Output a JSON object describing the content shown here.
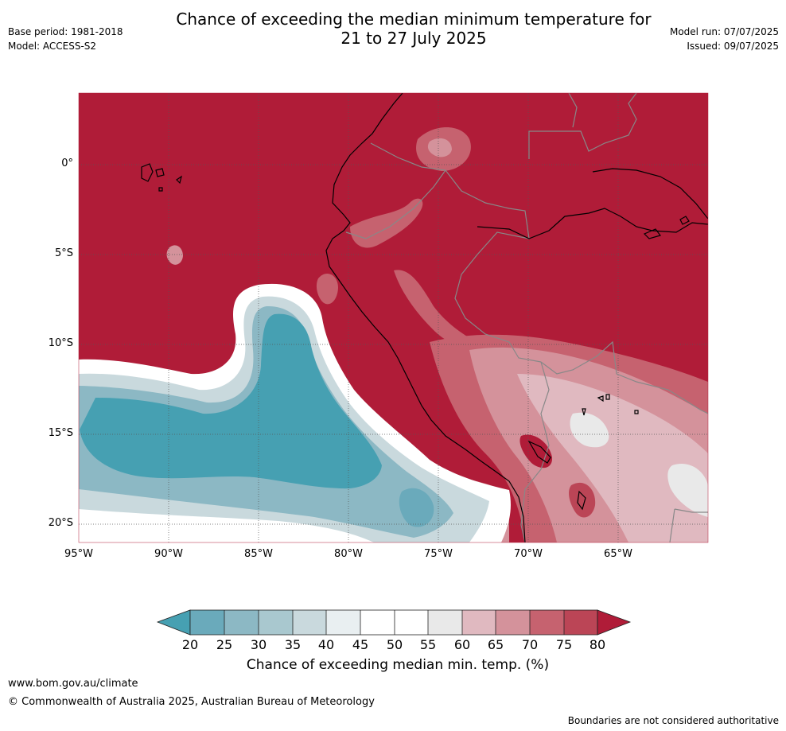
{
  "title": {
    "line1": "Chance of exceeding the median minimum temperature for",
    "line2": "21 to 27 July 2025"
  },
  "meta_left": {
    "base_period": "Base period: 1981-2018",
    "model": "Model: ACCESS-S2"
  },
  "meta_right": {
    "model_run": "Model run: 07/07/2025",
    "issued": "Issued: 09/07/2025"
  },
  "map": {
    "region": "Western South America and adjacent Pacific Ocean",
    "lon_range": [
      -95,
      -60
    ],
    "lat_range": [
      -21,
      4
    ],
    "lat_labels": [
      "0°",
      "5°S",
      "10°S",
      "15°S",
      "20°S"
    ],
    "lon_labels": [
      "95°W",
      "90°W",
      "85°W",
      "80°W",
      "75°W",
      "70°W",
      "65°W"
    ],
    "grid": "dotted",
    "coastline_color": "#000000",
    "border_color": "#888888"
  },
  "colorbar": {
    "ticks": [
      "20",
      "25",
      "30",
      "35",
      "40",
      "45",
      "50",
      "55",
      "60",
      "65",
      "70",
      "75",
      "80"
    ],
    "label": "Chance of exceeding median min. temp. (%)",
    "colors": {
      "below_20": "#46a0b2",
      "c20_25": "#6aaabb",
      "c25_30": "#8cb8c4",
      "c30_35": "#a9c8cf",
      "c35_40": "#c9d9dd",
      "c40_45": "#e9eff1",
      "c45_50": "#ffffff",
      "c50_55": "#ffffff",
      "c55_60": "#e9e9e9",
      "c60_65": "#e0b9c0",
      "c65_70": "#d4929b",
      "c70_75": "#c6626f",
      "c75_80": "#bb4556",
      "above_80": "#b01c38"
    }
  },
  "footer": {
    "url": "www.bom.gov.au/climate",
    "copyright": "© Commonwealth of Australia 2025, Australian Bureau of Meteorology",
    "disclaimer": "Boundaries are not considered authoritative"
  }
}
